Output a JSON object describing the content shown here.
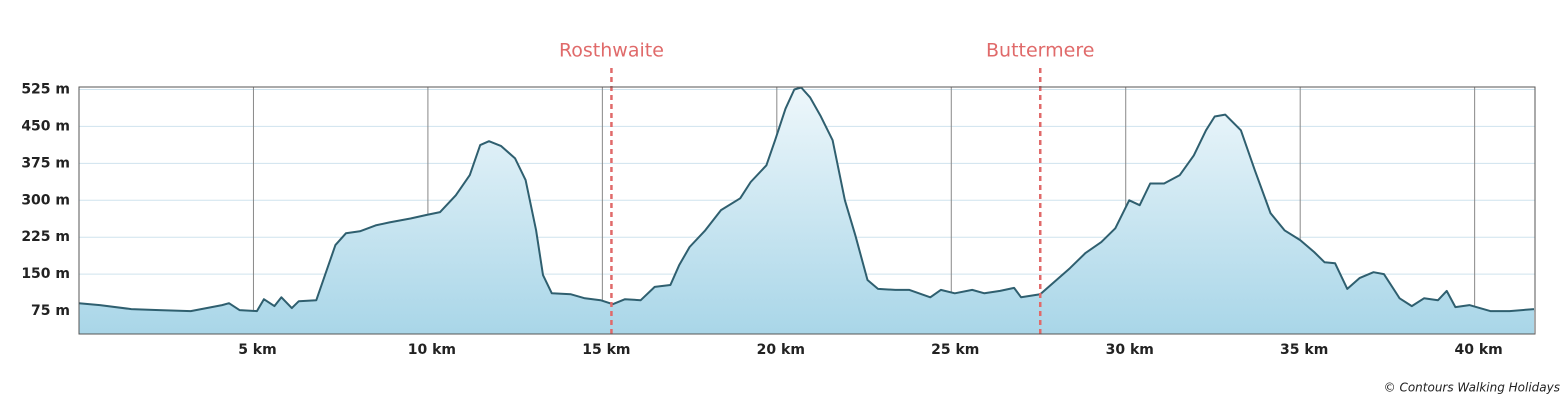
{
  "chart_data": {
    "type": "area",
    "annotations": [
      {
        "label": "Rosthwaite",
        "x": 15.26
      },
      {
        "label": "Buttermere",
        "x": 27.55
      }
    ],
    "annotation_color": "#e06a6a",
    "source": "© Contours Walking Holidays",
    "line_color": "#2f5f6f",
    "x": [
      0,
      0.6,
      1.5,
      2.3,
      3.2,
      4.1,
      4.3,
      4.6,
      5.1,
      5.3,
      5.6,
      5.8,
      6.1,
      6.3,
      6.8,
      7.05,
      7.35,
      7.65,
      8.05,
      8.5,
      8.9,
      9.5,
      9.95,
      10.35,
      10.8,
      11.2,
      11.5,
      11.75,
      12.1,
      12.5,
      12.8,
      13.1,
      13.3,
      13.55,
      14.1,
      14.5,
      14.95,
      15.3,
      15.65,
      16.1,
      16.5,
      16.95,
      17.2,
      17.5,
      17.95,
      18.4,
      18.95,
      19.25,
      19.7,
      19.95,
      20.25,
      20.5,
      20.7,
      20.95,
      21.25,
      21.6,
      21.95,
      22.25,
      22.6,
      22.9,
      23.4,
      23.8,
      24.4,
      24.7,
      25.1,
      25.6,
      25.95,
      26.4,
      26.8,
      27.0,
      27.55,
      27.95,
      28.4,
      28.85,
      29.3,
      29.7,
      30.1,
      30.4,
      30.7,
      31.1,
      31.55,
      31.95,
      32.3,
      32.55,
      32.85,
      33.3,
      33.7,
      34.15,
      34.55,
      35.0,
      35.4,
      35.7,
      36.0,
      36.35,
      36.7,
      37.1,
      37.4,
      37.85,
      38.2,
      38.55,
      38.95,
      39.2,
      39.45,
      39.85,
      40.45,
      41.0,
      41.7
    ],
    "values": [
      91,
      87,
      79,
      77,
      75,
      87,
      91,
      77,
      75,
      99,
      85,
      103,
      81,
      95,
      97,
      148,
      209,
      233,
      237,
      249,
      255,
      263,
      270,
      276,
      310,
      351,
      412,
      420,
      410,
      385,
      341,
      239,
      148,
      111,
      109,
      101,
      97,
      89,
      99,
      97,
      124,
      128,
      168,
      205,
      239,
      280,
      304,
      337,
      371,
      422,
      486,
      525,
      529,
      509,
      472,
      422,
      300,
      229,
      138,
      120,
      118,
      118,
      103,
      118,
      111,
      118,
      111,
      116,
      122,
      103,
      109,
      134,
      162,
      193,
      215,
      243,
      300,
      290,
      334,
      334,
      351,
      391,
      442,
      470,
      474,
      442,
      361,
      274,
      239,
      219,
      195,
      174,
      172,
      120,
      142,
      154,
      150,
      101,
      85,
      101,
      97,
      116,
      83,
      87,
      75,
      75,
      79
    ],
    "xlim": [
      0,
      41.73
    ],
    "ylim": [
      28.4,
      530
    ],
    "xticks": [
      {
        "value": 5,
        "label": "5 km"
      },
      {
        "value": 10,
        "label": "10 km"
      },
      {
        "value": 15,
        "label": "15 km"
      },
      {
        "value": 20,
        "label": "20 km"
      },
      {
        "value": 25,
        "label": "25 km"
      },
      {
        "value": 30,
        "label": "30 km"
      },
      {
        "value": 35,
        "label": "35 km"
      },
      {
        "value": 40,
        "label": "40 km"
      }
    ],
    "yticks": [
      {
        "value": 75,
        "label": "75 m"
      },
      {
        "value": 150,
        "label": "150 m"
      },
      {
        "value": 225,
        "label": "225 m"
      },
      {
        "value": 300,
        "label": "300 m"
      },
      {
        "value": 375,
        "label": "375 m"
      },
      {
        "value": 450,
        "label": "450 m"
      },
      {
        "value": 525,
        "label": "525 m"
      }
    ],
    "grid": true
  }
}
